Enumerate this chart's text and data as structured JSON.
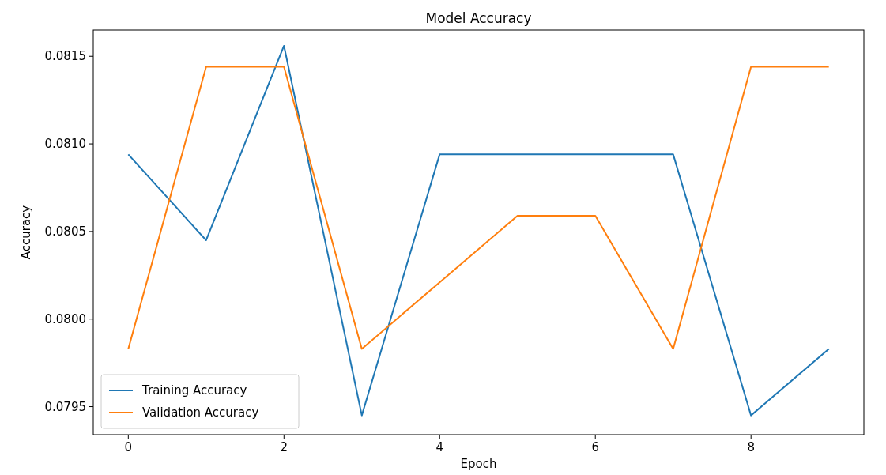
{
  "chart_data": {
    "type": "line",
    "title": "Model Accuracy",
    "xlabel": "Epoch",
    "ylabel": "Accuracy",
    "x": [
      0,
      1,
      2,
      3,
      4,
      5,
      6,
      7,
      8,
      9
    ],
    "series": [
      {
        "name": "Training Accuracy",
        "color": "#1f77b4",
        "values": [
          0.08094,
          0.08045,
          0.08156,
          0.07945,
          0.08094,
          0.08094,
          0.08094,
          0.08094,
          0.07945,
          0.07983
        ]
      },
      {
        "name": "Validation Accuracy",
        "color": "#ff7f0e",
        "values": [
          0.07983,
          0.08144,
          0.08144,
          0.07983,
          0.08021,
          0.08059,
          0.08059,
          0.07983,
          0.08144,
          0.08144
        ]
      }
    ],
    "xlim": [
      -0.45,
      9.45
    ],
    "xticks": [
      0,
      2,
      4,
      6,
      8
    ],
    "ylim": [
      0.07934,
      0.08165
    ],
    "yticks": [
      {
        "value": 0.0795,
        "label": "0.0795"
      },
      {
        "value": 0.08,
        "label": "0.0800"
      },
      {
        "value": 0.0805,
        "label": "0.0805"
      },
      {
        "value": 0.081,
        "label": "0.0810"
      },
      {
        "value": 0.0815,
        "label": "0.0815"
      }
    ],
    "legend": "bottom left",
    "grid": false,
    "marker": "none",
    "line_style": "solid"
  }
}
